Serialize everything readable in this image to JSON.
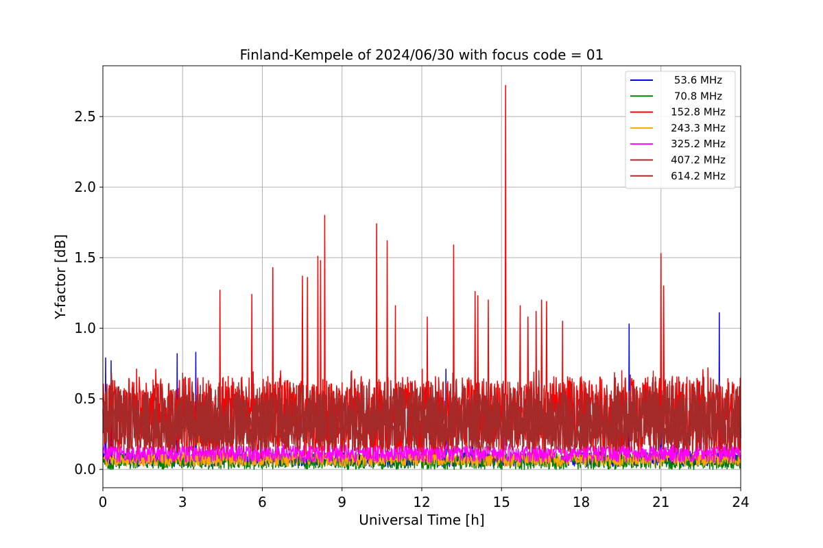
{
  "chart_data": {
    "type": "line",
    "title": "Finland-Kempele of 2024/06/30 with focus code = 01",
    "xlabel": "Universal Time [h]",
    "ylabel": "Y-factor [dB]",
    "xlim": [
      0,
      24
    ],
    "ylim": [
      -0.13,
      2.86
    ],
    "xticks": [
      0,
      3,
      6,
      9,
      12,
      15,
      18,
      21,
      24
    ],
    "xtick_labels": [
      "0",
      "3",
      "6",
      "9",
      "12",
      "15",
      "18",
      "21",
      "24"
    ],
    "yticks": [
      0.0,
      0.5,
      1.0,
      1.5,
      2.0,
      2.5
    ],
    "ytick_labels": [
      "0.0",
      "0.5",
      "1.0",
      "1.5",
      "2.0",
      "2.5"
    ],
    "grid": true,
    "legend_position": "top-right",
    "series": [
      {
        "name": "53.6 MHz",
        "color": "#0000ff",
        "base": 0.07,
        "band": [
          0.02,
          0.13
        ],
        "spikes": [
          [
            0.1,
            0.79
          ],
          [
            0.3,
            0.77
          ],
          [
            2.8,
            0.82
          ],
          [
            3.5,
            0.83
          ],
          [
            12.9,
            0.71
          ],
          [
            13.9,
            0.49
          ],
          [
            19.8,
            1.03
          ],
          [
            21.0,
            0.6
          ],
          [
            21.6,
            0.35
          ],
          [
            23.2,
            1.11
          ]
        ]
      },
      {
        "name": "70.8 MHz",
        "color": "#008000",
        "base": 0.07,
        "band": [
          0.0,
          0.12
        ],
        "spikes": [
          [
            5.5,
            0.1
          ],
          [
            13.6,
            0.1
          ]
        ]
      },
      {
        "name": "152.8 MHz",
        "color": "#ff0000",
        "base": 0.42,
        "band": [
          0.05,
          0.72
        ],
        "spikes": [
          [
            4.4,
            1.27
          ],
          [
            5.6,
            1.24
          ],
          [
            6.4,
            1.43
          ],
          [
            7.5,
            1.37
          ],
          [
            7.7,
            1.36
          ],
          [
            8.1,
            1.51
          ],
          [
            8.2,
            1.48
          ],
          [
            8.35,
            1.8
          ],
          [
            10.3,
            1.74
          ],
          [
            10.7,
            1.62
          ],
          [
            11.0,
            1.16
          ],
          [
            12.2,
            1.08
          ],
          [
            13.2,
            1.59
          ],
          [
            14.0,
            1.26
          ],
          [
            14.1,
            1.23
          ],
          [
            14.5,
            1.2
          ],
          [
            15.15,
            2.72
          ],
          [
            15.7,
            1.16
          ],
          [
            16.0,
            1.08
          ],
          [
            16.3,
            1.12
          ],
          [
            16.5,
            1.2
          ],
          [
            16.7,
            1.19
          ],
          [
            17.3,
            1.05
          ],
          [
            21.0,
            1.53
          ],
          [
            21.1,
            1.3
          ]
        ]
      },
      {
        "name": "243.3 MHz",
        "color": "#ffa500",
        "base": 0.08,
        "band": [
          0.02,
          0.12
        ],
        "spikes": [
          [
            3.6,
            0.43
          ]
        ]
      },
      {
        "name": "325.2 MHz",
        "color": "#ff00ff",
        "base": 0.12,
        "band": [
          0.05,
          0.18
        ],
        "spikes": [
          [
            15.1,
            0.25
          ],
          [
            22.5,
            0.45
          ]
        ]
      },
      {
        "name": "407.2 MHz",
        "color": "#a52a2a",
        "base": 0.3,
        "band": [
          0.12,
          0.62
        ],
        "spikes": []
      },
      {
        "name": "614.2 MHz",
        "color": "#a52a2a",
        "base": 0.32,
        "band": [
          0.14,
          0.7
        ],
        "spikes": []
      }
    ]
  }
}
